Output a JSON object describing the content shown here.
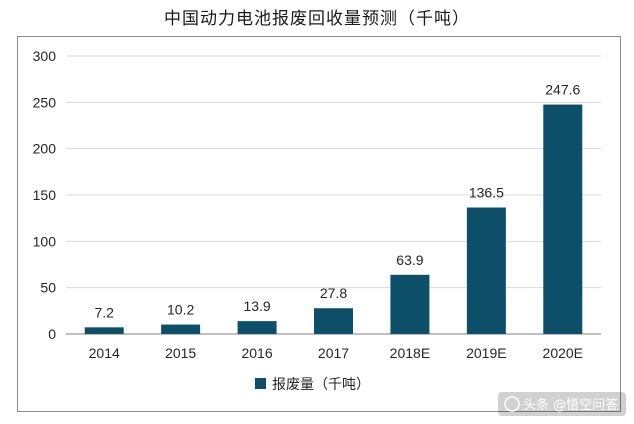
{
  "chart_data": {
    "type": "bar",
    "title": "中国动力电池报废回收量预测（千吨）",
    "categories": [
      "2014",
      "2015",
      "2016",
      "2017",
      "2018E",
      "2019E",
      "2020E"
    ],
    "series": [
      {
        "name": "报废量（千吨）",
        "values": [
          7.2,
          10.2,
          13.9,
          27.8,
          63.9,
          136.5,
          247.6
        ],
        "color": "#0d4f68"
      }
    ],
    "data_labels": [
      "7.2",
      "10.2",
      "13.9",
      "27.8",
      "63.9",
      "136.5",
      "247.6"
    ],
    "ylim": [
      0,
      300
    ],
    "yticks": [
      0,
      50,
      100,
      150,
      200,
      250,
      300
    ],
    "grid": true,
    "legend": "bottom-center"
  },
  "watermark": {
    "text": "头条 @悟空问答",
    "icon": "speech-bubble-icon"
  }
}
